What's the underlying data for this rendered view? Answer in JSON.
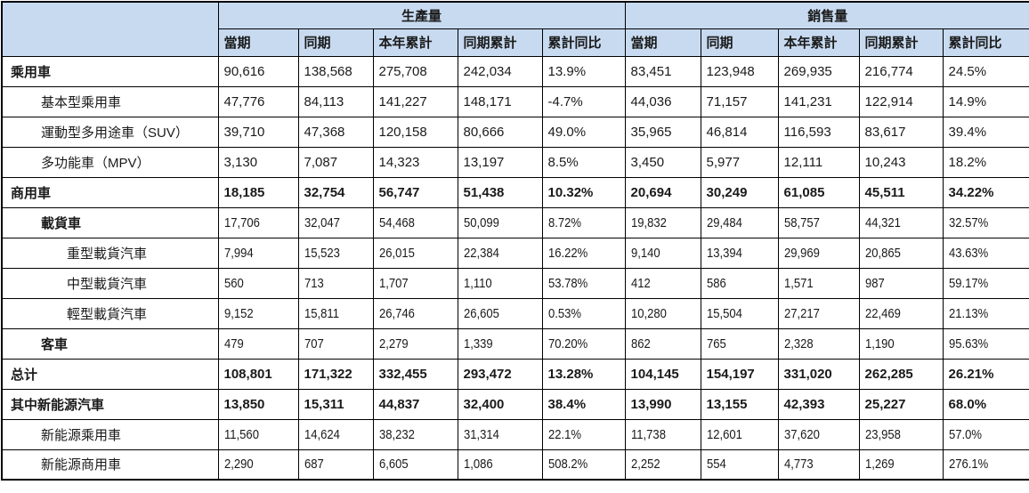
{
  "table": {
    "groups": [
      {
        "label": "生產量"
      },
      {
        "label": "銷售量"
      }
    ],
    "sub_headers": [
      "當期",
      "同期",
      "本年累計",
      "同期累計",
      "累計同比"
    ],
    "rows": [
      {
        "label": "乘用車",
        "indent": 0,
        "bold_label": true,
        "bold_values": false,
        "condensed": false,
        "production": [
          "90,616",
          "138,568",
          "275,708",
          "242,034",
          "13.9%"
        ],
        "sales": [
          "83,451",
          "123,948",
          "269,935",
          "216,774",
          "24.5%"
        ]
      },
      {
        "label": "基本型乘用車",
        "indent": 1,
        "bold_label": false,
        "bold_values": false,
        "condensed": false,
        "production": [
          "47,776",
          "84,113",
          "141,227",
          "148,171",
          "-4.7%"
        ],
        "sales": [
          "44,036",
          "71,157",
          "141,231",
          "122,914",
          "14.9%"
        ]
      },
      {
        "label": "運動型多用途車（SUV）",
        "indent": 1,
        "bold_label": false,
        "bold_values": false,
        "condensed": false,
        "production": [
          "39,710",
          "47,368",
          "120,158",
          "80,666",
          "49.0%"
        ],
        "sales": [
          "35,965",
          "46,814",
          "116,593",
          "83,617",
          "39.4%"
        ]
      },
      {
        "label": "多功能車（MPV）",
        "indent": 1,
        "bold_label": false,
        "bold_values": false,
        "condensed": false,
        "production": [
          "3,130",
          "7,087",
          "14,323",
          "13,197",
          "8.5%"
        ],
        "sales": [
          "3,450",
          "5,977",
          "12,111",
          "10,243",
          "18.2%"
        ]
      },
      {
        "label": "商用車",
        "indent": 0,
        "bold_label": true,
        "bold_values": true,
        "condensed": false,
        "production": [
          "18,185",
          "32,754",
          "56,747",
          "51,438",
          "10.32%"
        ],
        "sales": [
          "20,694",
          "30,249",
          "61,085",
          "45,511",
          "34.22%"
        ]
      },
      {
        "label": "載貨車",
        "indent": 1,
        "bold_label": true,
        "bold_values": false,
        "condensed": true,
        "production": [
          "17,706",
          "32,047",
          "54,468",
          "50,099",
          "8.72%"
        ],
        "sales": [
          "19,832",
          "29,484",
          "58,757",
          "44,321",
          "32.57%"
        ]
      },
      {
        "label": "重型載貨汽車",
        "indent": 2,
        "bold_label": false,
        "bold_values": false,
        "condensed": true,
        "production": [
          "7,994",
          "15,523",
          "26,015",
          "22,384",
          "16.22%"
        ],
        "sales": [
          "9,140",
          "13,394",
          "29,969",
          "20,865",
          "43.63%"
        ]
      },
      {
        "label": "中型載貨汽車",
        "indent": 2,
        "bold_label": false,
        "bold_values": false,
        "condensed": true,
        "production": [
          "560",
          "713",
          "1,707",
          "1,110",
          "53.78%"
        ],
        "sales": [
          "412",
          "586",
          "1,571",
          "987",
          "59.17%"
        ]
      },
      {
        "label": "輕型載貨汽車",
        "indent": 2,
        "bold_label": false,
        "bold_values": false,
        "condensed": true,
        "production": [
          "9,152",
          "15,811",
          "26,746",
          "26,605",
          "0.53%"
        ],
        "sales": [
          "10,280",
          "15,504",
          "27,217",
          "22,469",
          "21.13%"
        ]
      },
      {
        "label": "客車",
        "indent": 1,
        "bold_label": true,
        "bold_values": false,
        "condensed": true,
        "production": [
          "479",
          "707",
          "2,279",
          "1,339",
          "70.20%"
        ],
        "sales": [
          "862",
          "765",
          "2,328",
          "1,190",
          "95.63%"
        ]
      },
      {
        "label": "总计",
        "indent": 0,
        "bold_label": true,
        "bold_values": true,
        "condensed": false,
        "production": [
          "108,801",
          "171,322",
          "332,455",
          "293,472",
          "13.28%"
        ],
        "sales": [
          "104,145",
          "154,197",
          "331,020",
          "262,285",
          "26.21%"
        ]
      },
      {
        "label": "其中新能源汽車",
        "indent": 0,
        "bold_label": true,
        "bold_values": true,
        "condensed": false,
        "production": [
          "13,850",
          "15,311",
          "44,837",
          "32,400",
          "38.4%"
        ],
        "sales": [
          "13,990",
          "13,155",
          "42,393",
          "25,227",
          "68.0%"
        ]
      },
      {
        "label": "新能源乘用車",
        "indent": 1,
        "bold_label": false,
        "bold_values": false,
        "condensed": true,
        "production": [
          "11,560",
          "14,624",
          "38,232",
          "31,314",
          "22.1%"
        ],
        "sales": [
          "11,738",
          "12,601",
          "37,620",
          "23,958",
          "57.0%"
        ]
      },
      {
        "label": "新能源商用車",
        "indent": 1,
        "bold_label": false,
        "bold_values": false,
        "condensed": true,
        "production": [
          "2,290",
          "687",
          "6,605",
          "1,086",
          "508.2%"
        ],
        "sales": [
          "2,252",
          "554",
          "4,773",
          "1,269",
          "276.1%"
        ]
      }
    ],
    "colors": {
      "header_bg": "#c7daf0",
      "border": "#000000",
      "text": "#1a1a1a"
    }
  }
}
